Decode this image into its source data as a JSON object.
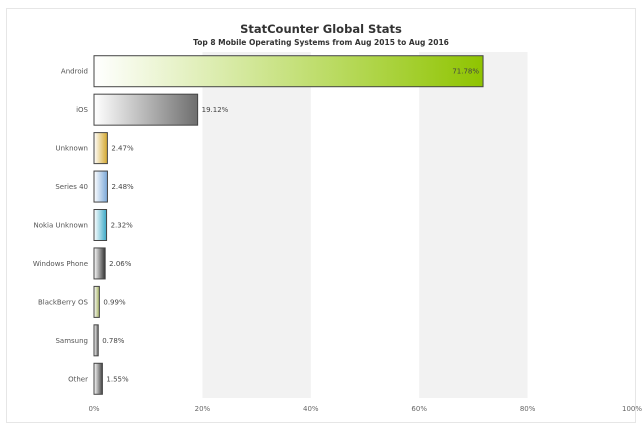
{
  "title": "StatCounter Global Stats",
  "subtitle": "Top 8 Mobile Operating Systems from Aug 2015 to Aug 2016",
  "chart_data": {
    "type": "bar",
    "orientation": "horizontal",
    "title": "StatCounter Global Stats",
    "subtitle": "Top 8 Mobile Operating Systems from Aug 2015 to Aug 2016",
    "categories": [
      "Android",
      "iOS",
      "Unknown",
      "Series 40",
      "Nokia Unknown",
      "Windows Phone",
      "BlackBerry OS",
      "Samsung",
      "Other"
    ],
    "values": [
      71.78,
      19.12,
      2.47,
      2.48,
      2.32,
      2.06,
      0.99,
      0.78,
      1.55
    ],
    "value_labels": [
      "71.78%",
      "19.12%",
      "2.47%",
      "2.48%",
      "2.32%",
      "2.06%",
      "0.99%",
      "0.78%",
      "1.55%"
    ],
    "bar_colors": [
      "#8fc400",
      "#6e6e6e",
      "#d4a72c",
      "#7aa7d8",
      "#3aa8c6",
      "#333333",
      "#a3b060",
      "#666666",
      "#444444"
    ],
    "xticks": [
      "0%",
      "20%",
      "40%",
      "60%",
      "80%",
      "100%"
    ],
    "xlim": [
      0,
      100
    ],
    "grid": "alternating vertical bands",
    "legend": "none"
  }
}
